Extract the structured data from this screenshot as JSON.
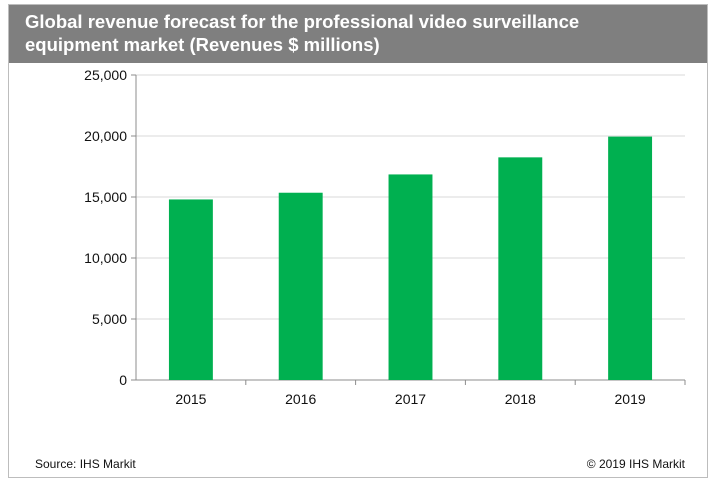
{
  "header": {
    "title": "Global revenue forecast for the professional video surveillance\nequipment market (Revenues $ millions)"
  },
  "footer": {
    "source": "Source: IHS Markit",
    "copyright": "© 2019 IHS Markit"
  },
  "colors": {
    "header_bg": "#7f7f7f",
    "bar": "#00b050",
    "grid": "#d9d9d9",
    "axis": "#8c8c8c"
  },
  "chart_data": {
    "type": "bar",
    "title": "Global revenue forecast for the professional video surveillance equipment market (Revenues $ millions)",
    "xlabel": "",
    "ylabel": "",
    "categories": [
      "2015",
      "2016",
      "2017",
      "2018",
      "2019"
    ],
    "values": [
      14800,
      15350,
      16850,
      18250,
      19950
    ],
    "ylim": [
      0,
      25000
    ],
    "yticks": [
      0,
      5000,
      10000,
      15000,
      20000,
      25000
    ],
    "ytick_labels": [
      "0",
      "5,000",
      "10,000",
      "15,000",
      "20,000",
      "25,000"
    ],
    "grid": true,
    "legend": "none"
  }
}
